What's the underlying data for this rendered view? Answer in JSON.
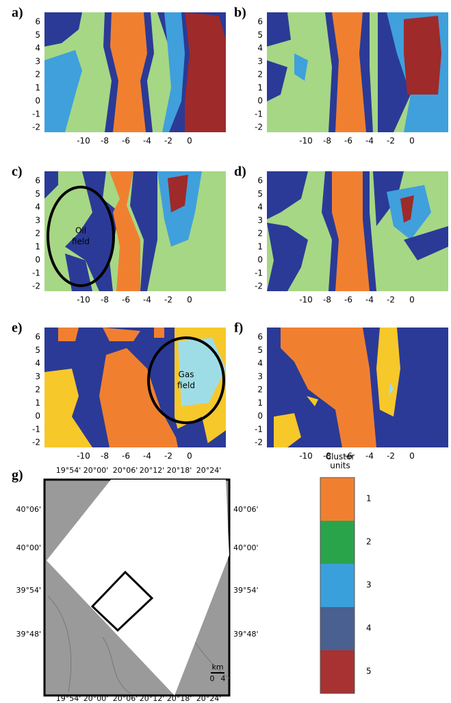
{
  "panels": [
    {
      "label": "a)"
    },
    {
      "label": "b)"
    },
    {
      "label": "c)",
      "annotation": [
        "Oil",
        "field"
      ]
    },
    {
      "label": "d)"
    },
    {
      "label": "e)",
      "annotation": [
        "Gas",
        "field"
      ]
    },
    {
      "label": "f)"
    }
  ],
  "xticks": [
    "-10",
    "-8",
    "-6",
    "-4",
    "-2",
    "0"
  ],
  "yticks": [
    "-2",
    "-1",
    "0",
    "1",
    "2",
    "3",
    "4",
    "5",
    "6"
  ],
  "map": {
    "label": "g)",
    "lon_labels": [
      "19°54'",
      "20°00'",
      "20°06'",
      "20°12'",
      "20°18'",
      "20°24'"
    ],
    "lat_labels": [
      "40°06'",
      "40°00'",
      "39°54'",
      "39°48'"
    ],
    "scale_unit": "km",
    "scale_ticks": [
      "0",
      "4"
    ]
  },
  "legend": {
    "title": [
      "Cluster",
      "units"
    ],
    "units": [
      "1",
      "2",
      "3",
      "4",
      "5"
    ],
    "colors": [
      "#f08030",
      "#2aa44a",
      "#3aa0dc",
      "#4a6090",
      "#a83232"
    ]
  }
}
